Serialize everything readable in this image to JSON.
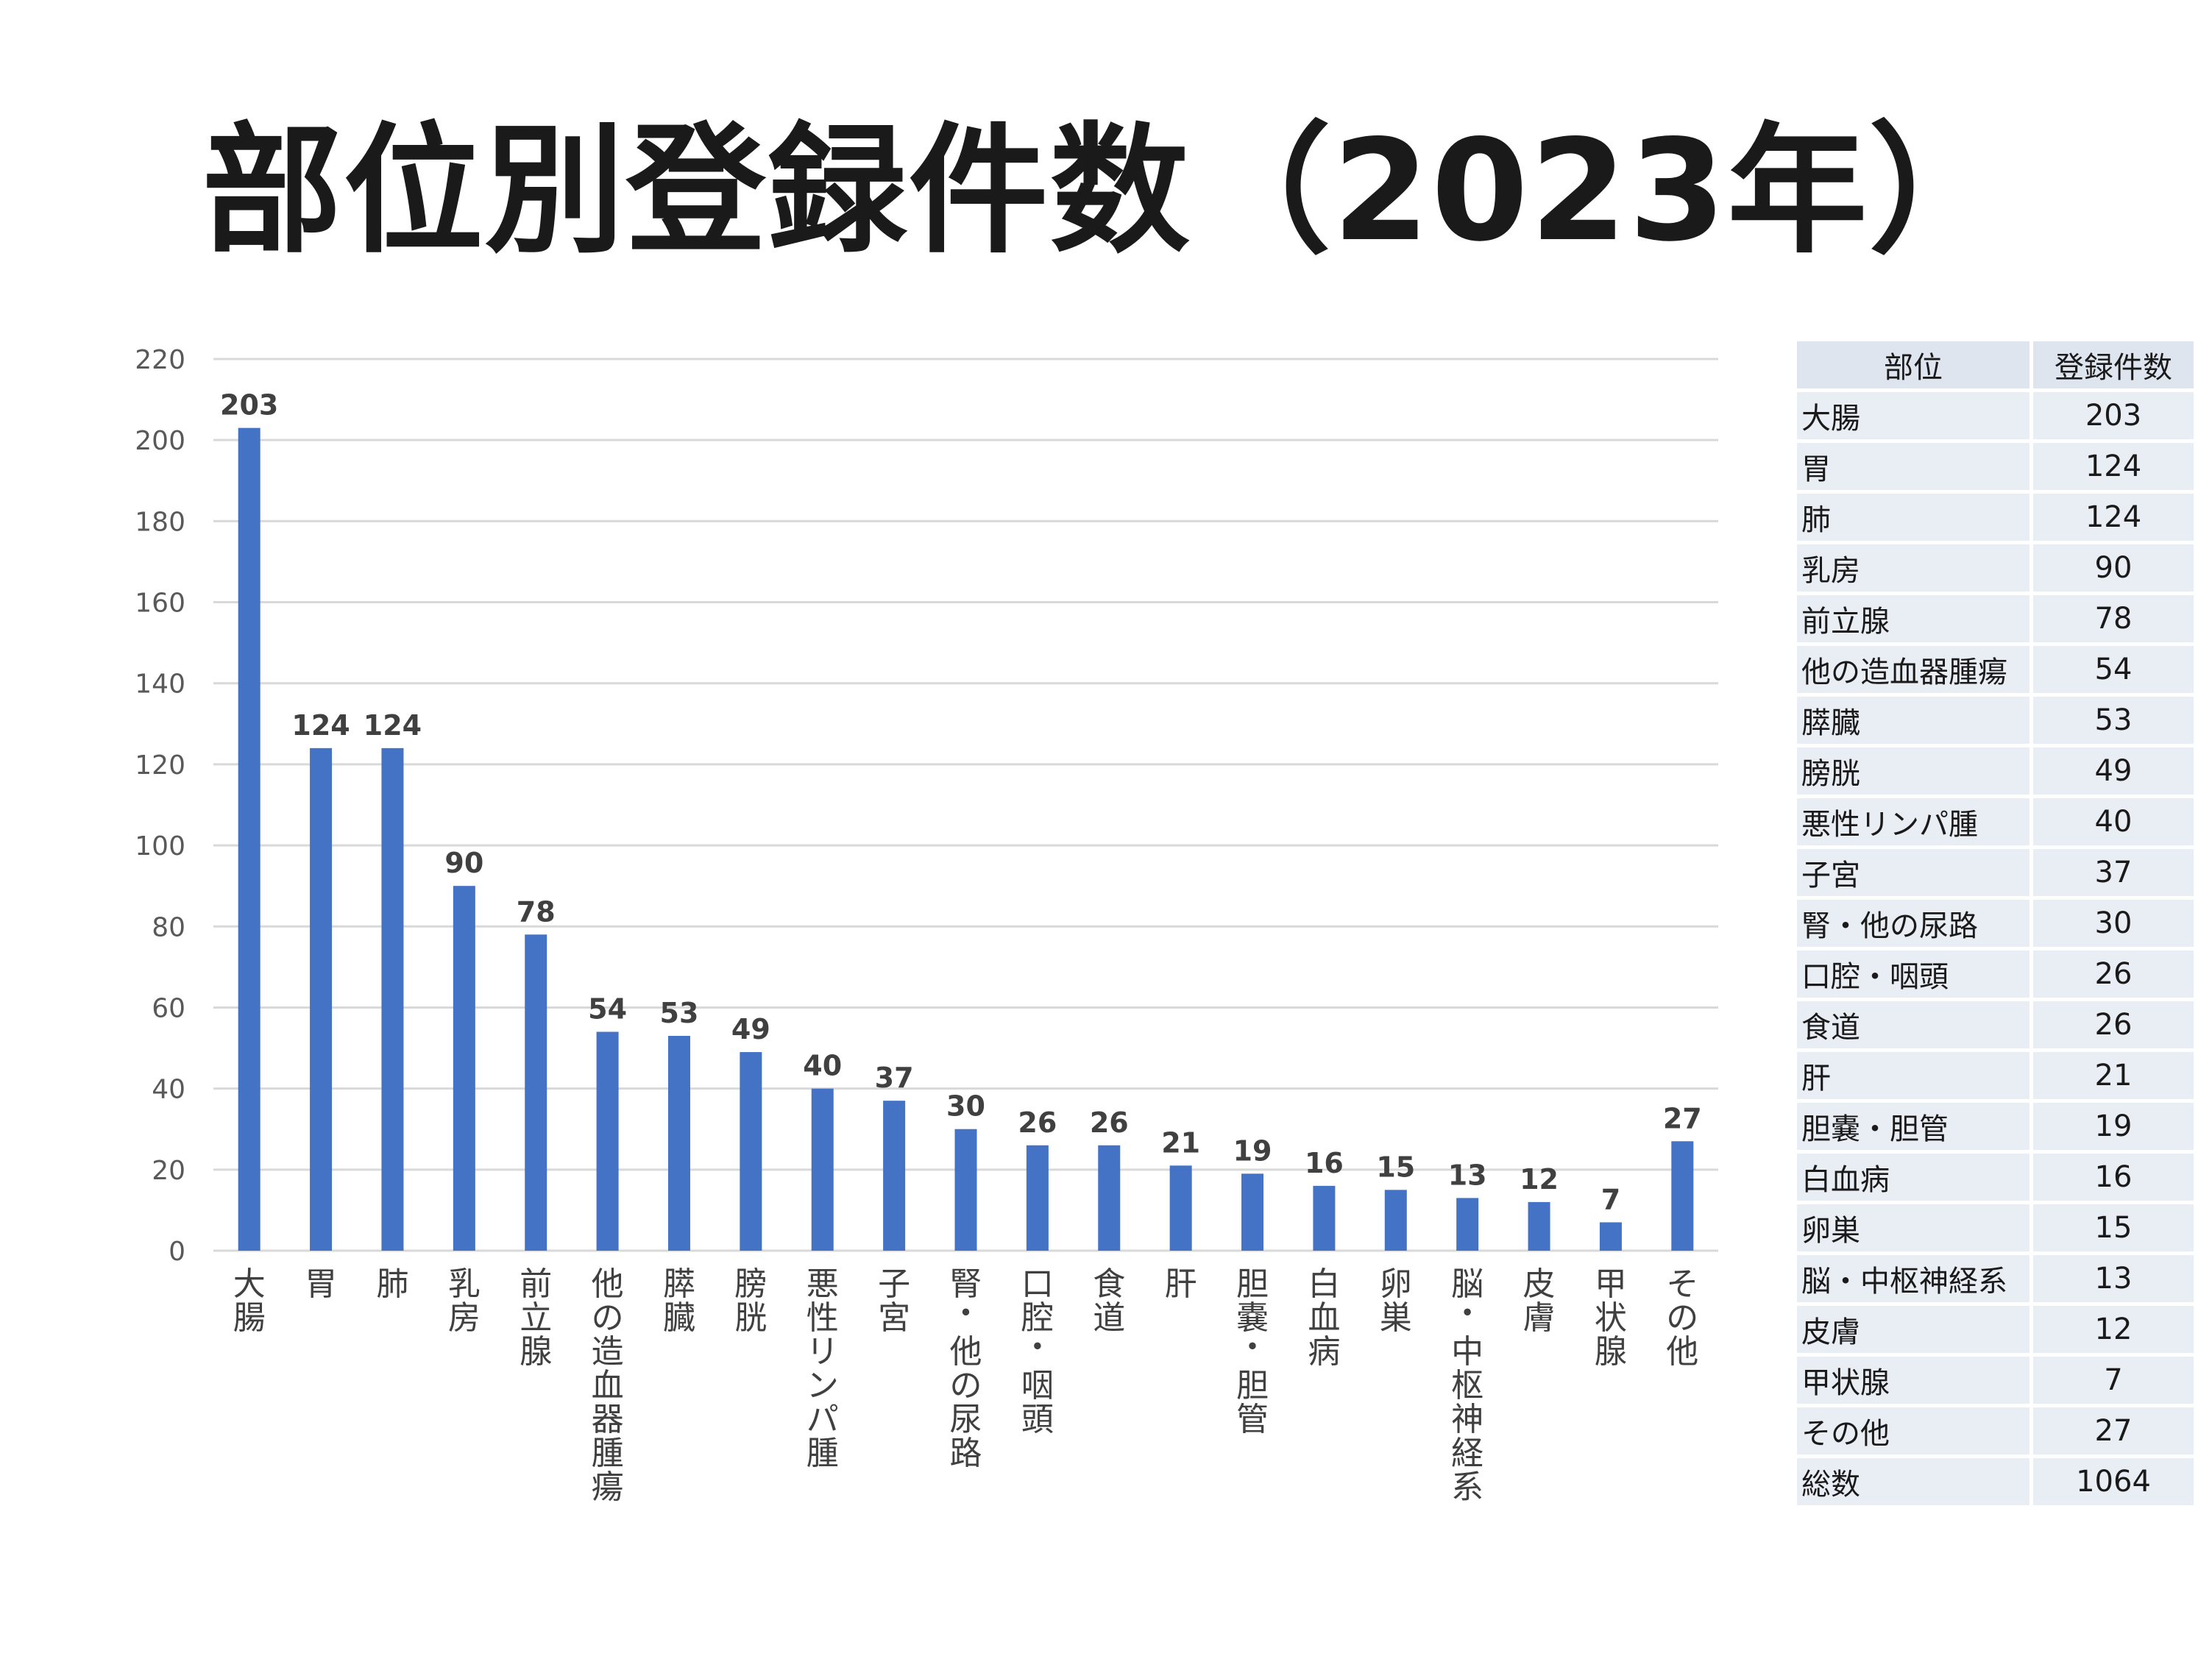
{
  "title": "部位別登録件数（2023年）",
  "chart_data": {
    "type": "bar",
    "categories": [
      "大腸",
      "胃",
      "肺",
      "乳房",
      "前立腺",
      "他の造血器腫瘍",
      "膵臓",
      "膀胱",
      "悪性リンパ腫",
      "子宮",
      "腎・他の尿路",
      "口腔・咽頭",
      "食道",
      "肝",
      "胆嚢・胆管",
      "白血病",
      "卵巣",
      "脳・中枢神経系",
      "皮膚",
      "甲状腺",
      "その他"
    ],
    "values": [
      203,
      124,
      124,
      90,
      78,
      54,
      53,
      49,
      40,
      37,
      30,
      26,
      26,
      21,
      19,
      16,
      15,
      13,
      12,
      7,
      27
    ],
    "ylim": [
      0,
      220
    ],
    "yticks": [
      0,
      20,
      40,
      60,
      80,
      100,
      120,
      140,
      160,
      180,
      200,
      220
    ],
    "grid": true,
    "bar_color": "#4472c4",
    "grid_color": "#d9d9d9"
  },
  "table": {
    "headers": [
      "部位",
      "登録件数"
    ],
    "rows": [
      [
        "大腸",
        "203"
      ],
      [
        "胃",
        "124"
      ],
      [
        "肺",
        "124"
      ],
      [
        "乳房",
        "90"
      ],
      [
        "前立腺",
        "78"
      ],
      [
        "他の造血器腫瘍",
        "54"
      ],
      [
        "膵臓",
        "53"
      ],
      [
        "膀胱",
        "49"
      ],
      [
        "悪性リンパ腫",
        "40"
      ],
      [
        "子宮",
        "37"
      ],
      [
        "腎・他の尿路",
        "30"
      ],
      [
        "口腔・咽頭",
        "26"
      ],
      [
        "食道",
        "26"
      ],
      [
        "肝",
        "21"
      ],
      [
        "胆嚢・胆管",
        "19"
      ],
      [
        "白血病",
        "16"
      ],
      [
        "卵巣",
        "15"
      ],
      [
        "脳・中枢神経系",
        "13"
      ],
      [
        "皮膚",
        "12"
      ],
      [
        "甲状腺",
        "7"
      ],
      [
        "その他",
        "27"
      ],
      [
        "総数",
        "1064"
      ]
    ]
  }
}
